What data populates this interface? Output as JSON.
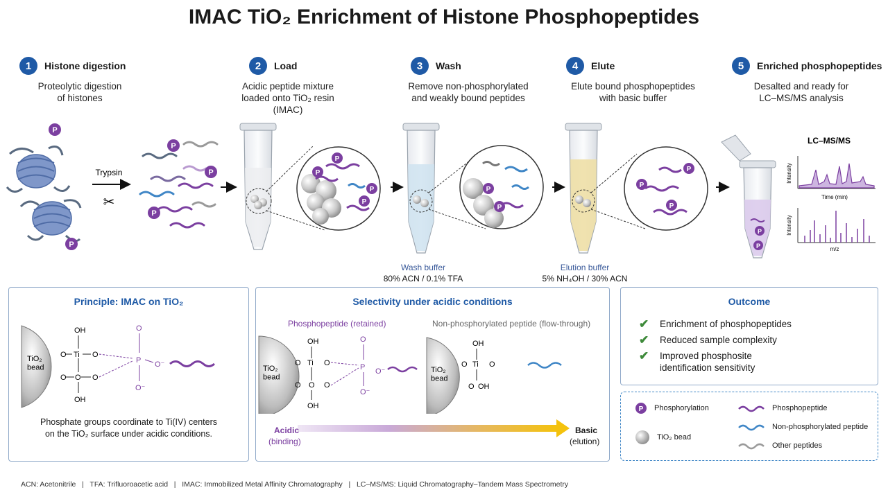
{
  "title": "IMAC TiO₂ Enrichment of Histone Phosphopeptides",
  "steps": [
    {
      "num": "1",
      "title": "Histone digestion",
      "desc": "Proteolytic digestion\nof histones"
    },
    {
      "num": "2",
      "title": "Load",
      "desc": "Acidic peptide mixture\nloaded onto TiO₂ resin\n(IMAC)"
    },
    {
      "num": "3",
      "title": "Wash",
      "desc": "Remove non-phosphorylated\nand weakly bound peptides"
    },
    {
      "num": "4",
      "title": "Elute",
      "desc": "Elute bound phosphopeptides\nwith basic buffer"
    },
    {
      "num": "5",
      "title": "Enriched phosphopeptides",
      "desc": "Desalted and ready for\nLC–MS/MS analysis"
    }
  ],
  "trypsin": "Trypsin",
  "p_mark": "P",
  "wash_buffer": {
    "label": "Wash buffer",
    "value": "80% ACN / 0.1% TFA"
  },
  "elution_buffer": {
    "label": "Elution buffer",
    "value": "5% NH₄OH / 30% ACN"
  },
  "lcms": {
    "title": "LC–MS/MS",
    "chrom_y": "Intensity",
    "chrom_x": "Time (min)",
    "ms_y": "Intensity",
    "ms_x": "m/z"
  },
  "principle": {
    "title": "Principle: IMAC on TiO₂",
    "bead": "TiO₂\nbead",
    "text": "Phosphate groups coordinate to Ti(IV) centers\non the TiO₂ surface under acidic conditions."
  },
  "selectivity": {
    "title": "Selectivity under acidic conditions",
    "phospho_label": "Phosphopeptide (retained)",
    "nonphospho_label": "Non-phosphorylated peptide (flow-through)",
    "acidic": "Acidic",
    "acidic_sub": "(binding)",
    "basic": "Basic",
    "basic_sub": "(elution)"
  },
  "chem": {
    "oh": "OH",
    "o": "O",
    "ti": "Ti",
    "p": "P",
    "ominus": "O⁻"
  },
  "outcome": {
    "title": "Outcome",
    "items": [
      "Enrichment of phosphopeptides",
      "Reduced sample complexity",
      "Improved phosphosite\nidentification sensitivity"
    ]
  },
  "legend": {
    "phosphorylation": "Phosphorylation",
    "bead": "TiO₂ bead",
    "phosphopeptide": "Phosphopeptide",
    "nonphospho": "Non-phosphorylated peptide",
    "other": "Other peptides"
  },
  "footer": "ACN: Acetonitrile   |   TFA: Trifluoroacetic acid   |   IMAC: Immobilized Metal Affinity Chromatography   |   LC–MS/MS: Liquid Chromatography–Tandem Mass Spectrometry",
  "colors": {
    "accent": "#1f5aa6",
    "phospho": "#7b3fa0",
    "nonphospho": "#3f86c6",
    "other": "#9a9a9a",
    "check": "#3e8a3a"
  }
}
